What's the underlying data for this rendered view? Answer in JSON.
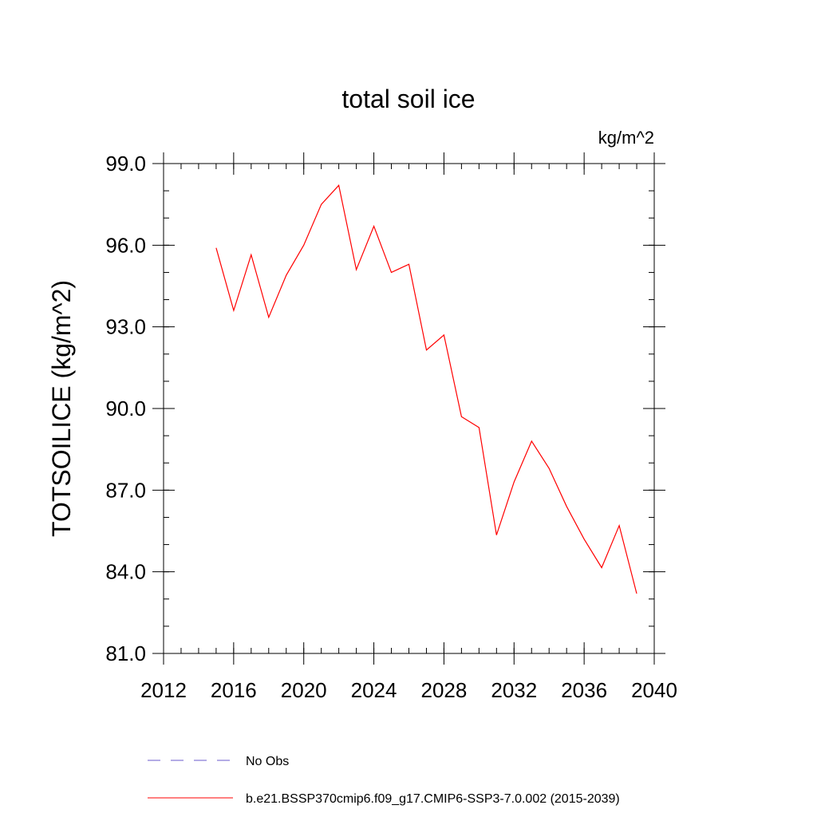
{
  "chart_data": {
    "type": "line",
    "title": "total soil ice",
    "units": "kg/m^2",
    "ylabel": "TOTSOILICE  (kg/m^2)",
    "xlabel": "",
    "xlim": [
      2012,
      2040
    ],
    "ylim": [
      81.0,
      99.0
    ],
    "x_ticks": [
      2012,
      2016,
      2020,
      2024,
      2028,
      2032,
      2036,
      2040
    ],
    "y_ticks": [
      "81.0",
      "84.0",
      "87.0",
      "90.0",
      "93.0",
      "96.0",
      "99.0"
    ],
    "grid": false,
    "legend": [
      {
        "name": "No Obs",
        "color": "#6a5acd",
        "style": "dashed"
      },
      {
        "name": "b.e21.BSSP370cmip6.f09_g17.CMIP6-SSP3-7.0.002 (2015-2039)",
        "color": "#ff0000",
        "style": "solid"
      }
    ],
    "series": [
      {
        "name": "b.e21.BSSP370cmip6.f09_g17.CMIP6-SSP3-7.0.002 (2015-2039)",
        "color": "#ff0000",
        "x": [
          2015,
          2016,
          2017,
          2018,
          2019,
          2020,
          2021,
          2022,
          2023,
          2024,
          2025,
          2026,
          2027,
          2028,
          2029,
          2030,
          2031,
          2032,
          2033,
          2034,
          2035,
          2036,
          2037,
          2038,
          2039
        ],
        "y": [
          95.9,
          93.6,
          95.65,
          93.35,
          94.9,
          96.0,
          97.5,
          98.2,
          95.1,
          96.7,
          95.0,
          95.3,
          92.15,
          92.7,
          89.7,
          89.3,
          85.35,
          87.3,
          88.8,
          87.8,
          86.4,
          85.2,
          84.15,
          85.7,
          83.2
        ]
      }
    ]
  }
}
